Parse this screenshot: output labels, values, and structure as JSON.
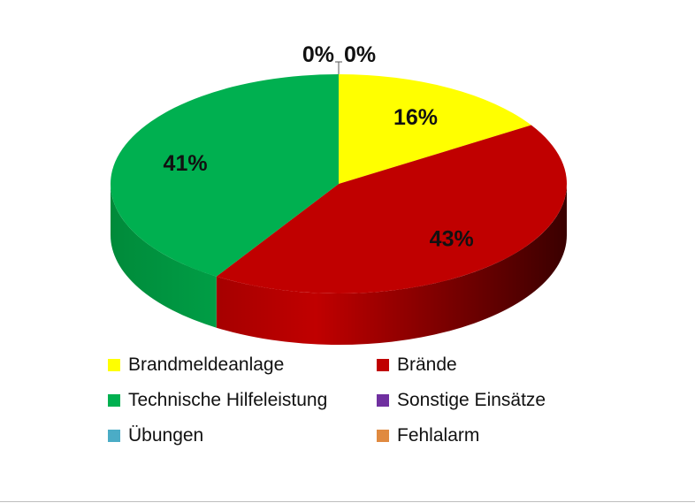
{
  "chart_data": {
    "type": "pie",
    "style": "3d",
    "categories": [
      "Brandmeldeanlage",
      "Brände",
      "Technische Hilfeleistung",
      "Sonstige Einsätze",
      "Übungen",
      "Fehlalarm"
    ],
    "values": [
      16,
      43,
      41,
      0,
      0,
      0
    ],
    "labels": [
      "16%",
      "43%",
      "41%",
      "0%",
      "0%",
      "0%"
    ],
    "colors": [
      "#FFFF00",
      "#C00000",
      "#00B050",
      "#7030A0",
      "#4BACC6",
      "#E08A40"
    ],
    "side_colors": [
      "#BDBD00",
      "#8A0000",
      "#008A3A",
      "#4E2070",
      "#357F92",
      "#A8622A"
    ],
    "legend_position": "bottom",
    "title": ""
  }
}
